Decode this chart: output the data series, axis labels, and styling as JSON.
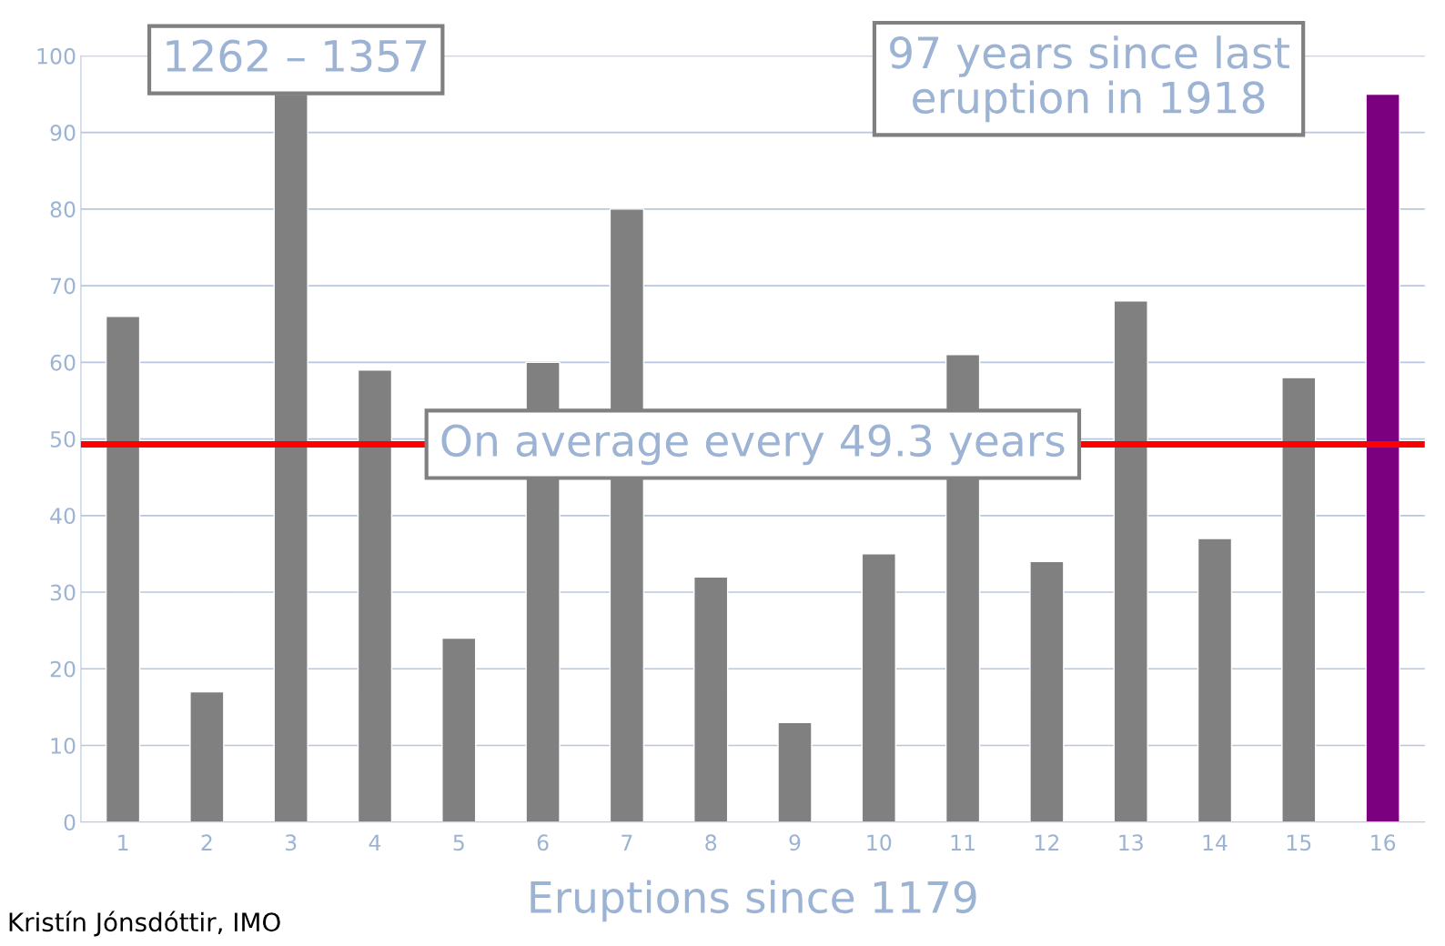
{
  "chart_data": {
    "type": "bar",
    "categories": [
      "1",
      "2",
      "3",
      "4",
      "5",
      "6",
      "7",
      "8",
      "9",
      "10",
      "11",
      "12",
      "13",
      "14",
      "15",
      "16"
    ],
    "values": [
      66,
      17,
      95,
      59,
      24,
      60,
      80,
      32,
      13,
      35,
      61,
      34,
      68,
      37,
      58,
      95
    ],
    "colors": [
      "#808080",
      "#808080",
      "#808080",
      "#808080",
      "#808080",
      "#808080",
      "#808080",
      "#808080",
      "#808080",
      "#808080",
      "#808080",
      "#808080",
      "#808080",
      "#808080",
      "#808080",
      "#7a007f"
    ],
    "xlabel": "Eruptions since 1179",
    "ylim": [
      0,
      100
    ],
    "yticks": [
      0,
      10,
      20,
      30,
      40,
      50,
      60,
      70,
      80,
      90,
      100
    ],
    "grid": "y",
    "ref_lines": [
      {
        "axis": "y",
        "value": 49.3,
        "label": "On average every 49.3 years",
        "color": "#ff0000"
      }
    ],
    "annotations": [
      "1262 – 1357",
      "97 years since last eruption in 1918",
      "Kristín Jónsdóttir, IMO"
    ]
  }
}
